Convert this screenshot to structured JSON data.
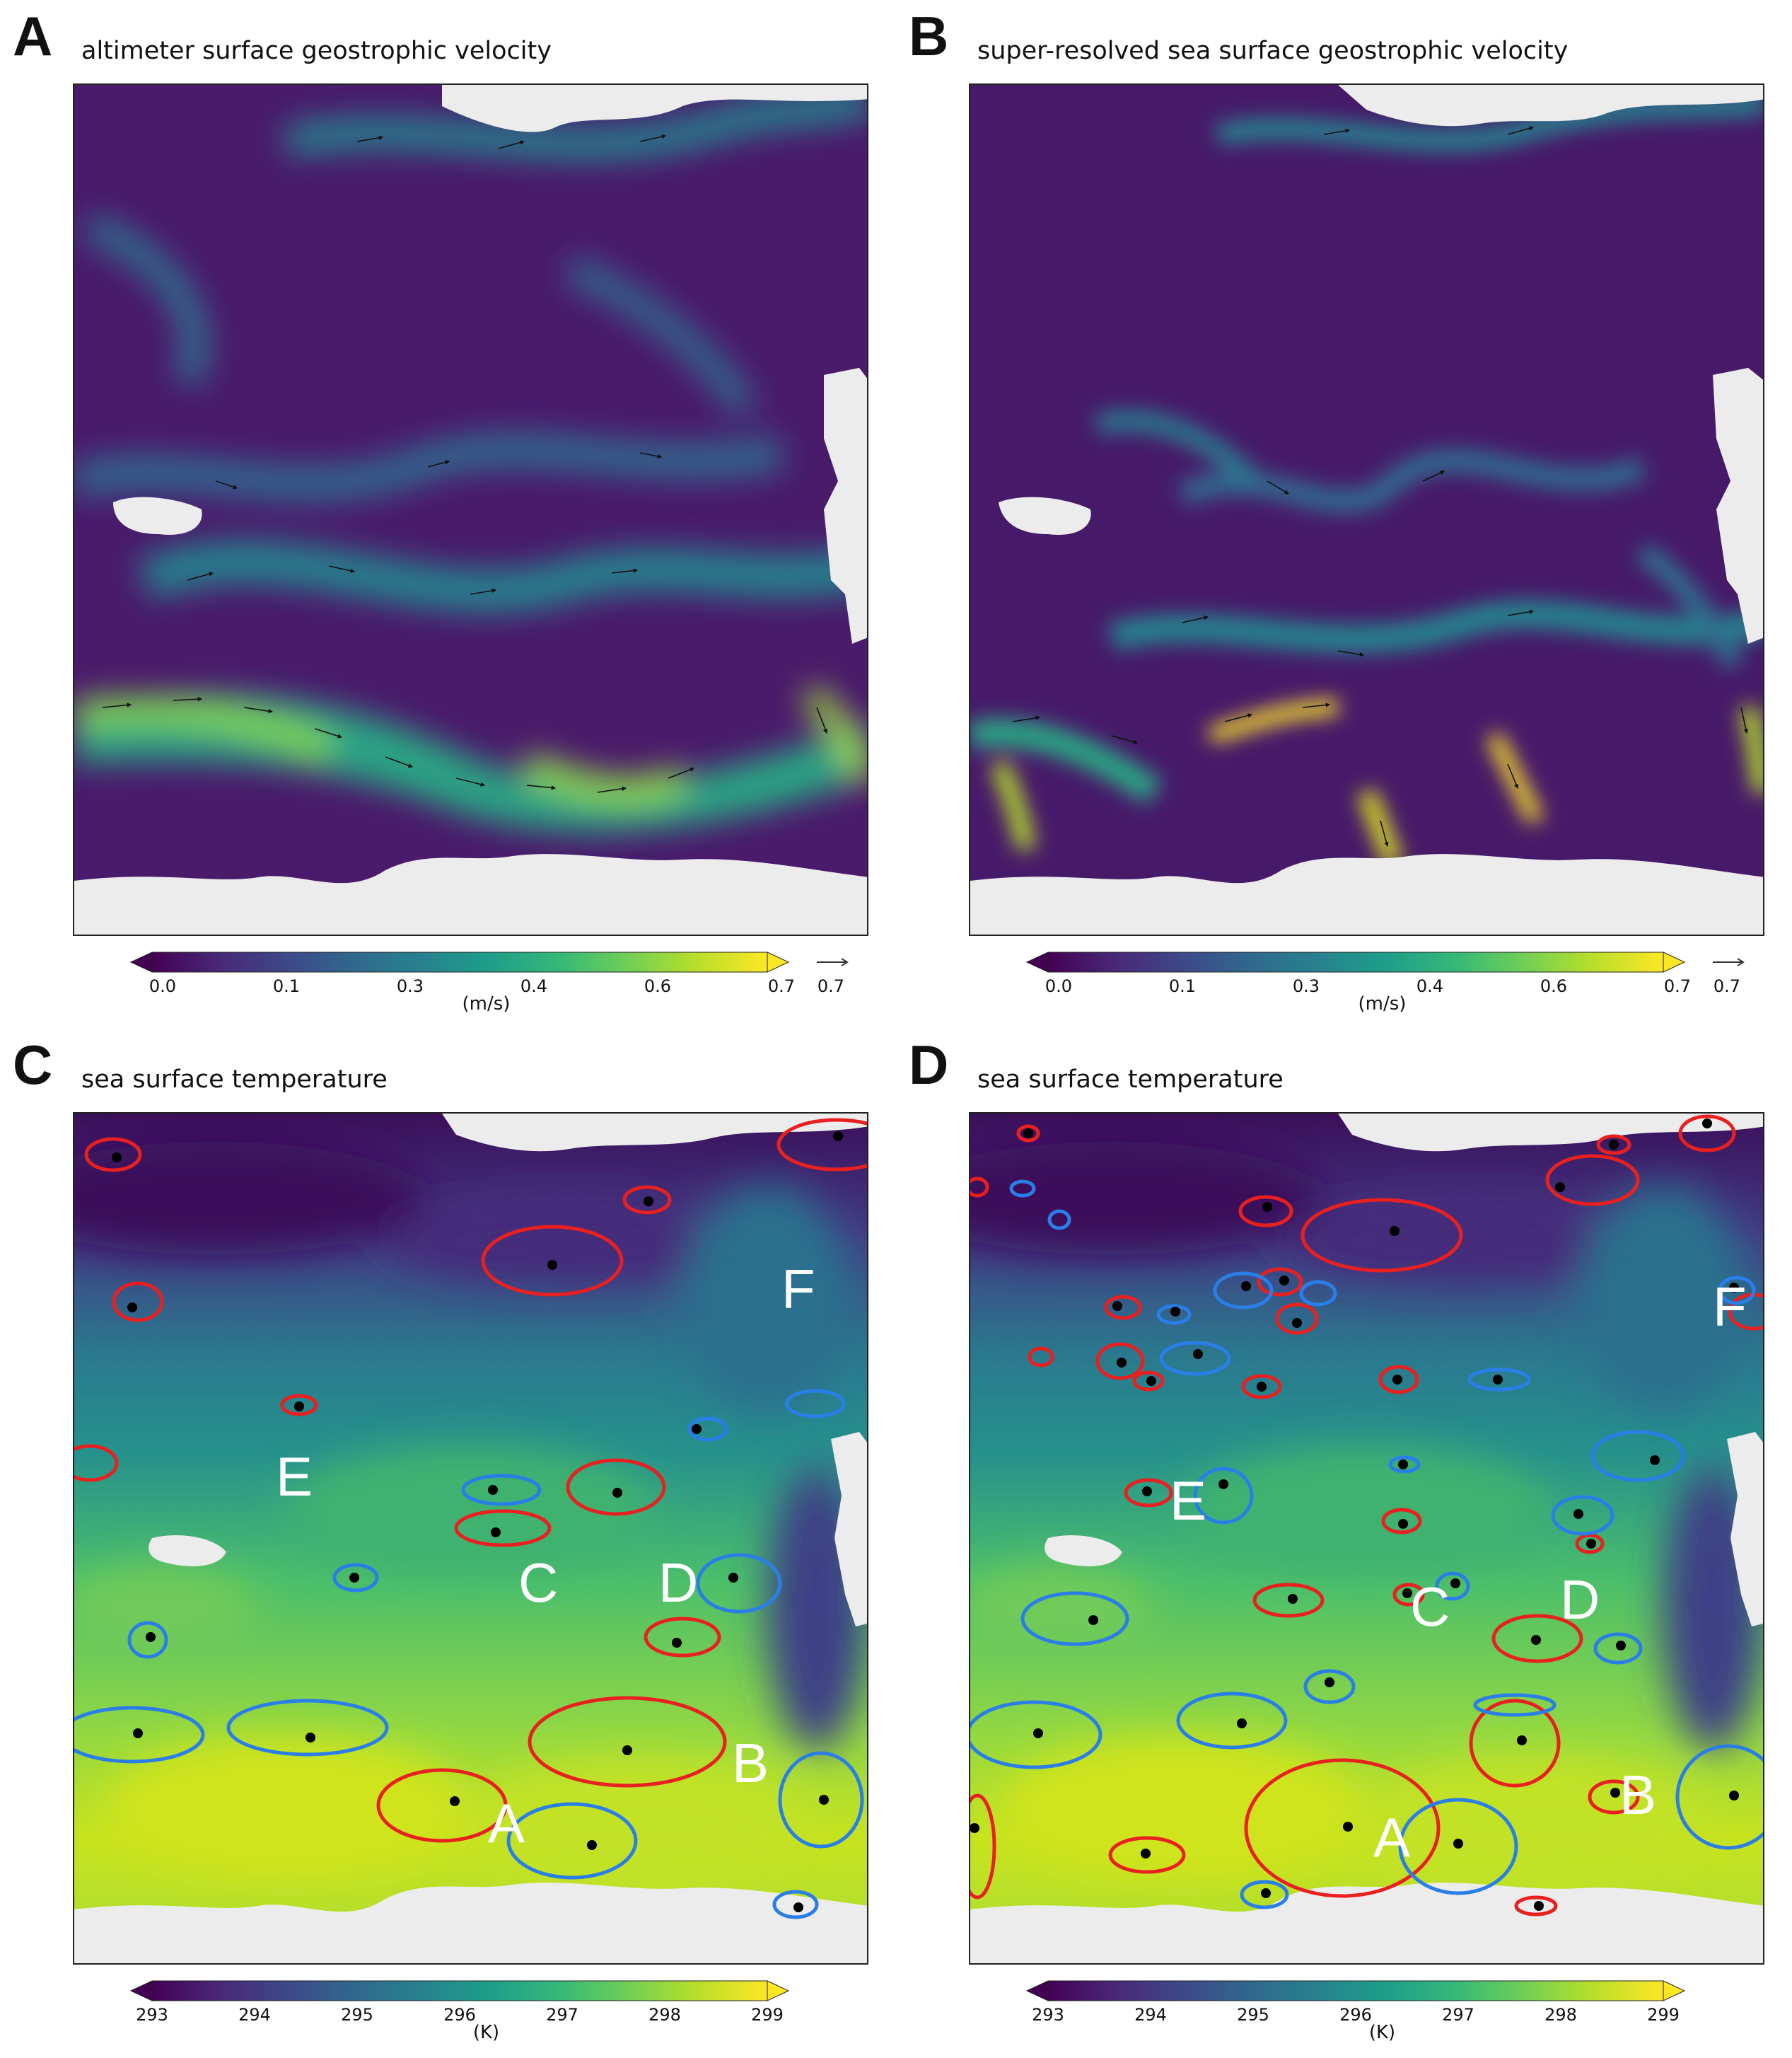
{
  "colors": {
    "viridis": [
      "#440154",
      "#482878",
      "#3e4989",
      "#31688e",
      "#26828e",
      "#1f9e89",
      "#35b779",
      "#6ece58",
      "#b5de2b",
      "#fde725"
    ],
    "land": "#ececec",
    "anticyclone": "#e8201f",
    "cyclone": "#2a7ee8",
    "center": "#000000"
  },
  "chart_data": [
    {
      "type": "heatmap",
      "panel_letter": "A",
      "title": "altimeter surface geostrophic velocity",
      "variable": "speed",
      "vector_overlay": true,
      "colorbar": {
        "label": "(m/s)",
        "range": [
          0.0,
          0.7
        ],
        "ticks": [
          "0.0",
          "0.1",
          "0.3",
          "0.4",
          "0.6",
          "0.7"
        ],
        "extend": "both",
        "reference_arrow_label": "0.7"
      }
    },
    {
      "type": "heatmap",
      "panel_letter": "B",
      "title": "super-resolved  sea surface geostrophic velocity",
      "variable": "speed",
      "vector_overlay": true,
      "colorbar": {
        "label": "(m/s)",
        "range": [
          0.0,
          0.7
        ],
        "ticks": [
          "0.0",
          "0.1",
          "0.3",
          "0.4",
          "0.6",
          "0.7"
        ],
        "extend": "both",
        "reference_arrow_label": "0.7"
      }
    },
    {
      "type": "heatmap",
      "panel_letter": "C",
      "title": "sea surface temperature",
      "variable": "temperature",
      "colorbar": {
        "label": "(K)",
        "range": [
          293,
          299
        ],
        "ticks": [
          "293",
          "294",
          "295",
          "296",
          "297",
          "298",
          "299"
        ],
        "extend": "both"
      },
      "region_labels": [
        "A",
        "B",
        "C",
        "D",
        "E",
        "F"
      ],
      "eddy_contours": {
        "anticyclonic_count": 13,
        "cyclonic_count": 11
      }
    },
    {
      "type": "heatmap",
      "panel_letter": "D",
      "title": "sea surface temperature",
      "variable": "temperature",
      "colorbar": {
        "label": "(K)",
        "range": [
          293,
          299
        ],
        "ticks": [
          "293",
          "294",
          "295",
          "296",
          "297",
          "298",
          "299"
        ],
        "extend": "both"
      },
      "region_labels": [
        "A",
        "B",
        "C",
        "D",
        "E",
        "F"
      ],
      "eddy_contours": {
        "anticyclonic_count": 30,
        "cyclonic_count": 21
      }
    }
  ]
}
